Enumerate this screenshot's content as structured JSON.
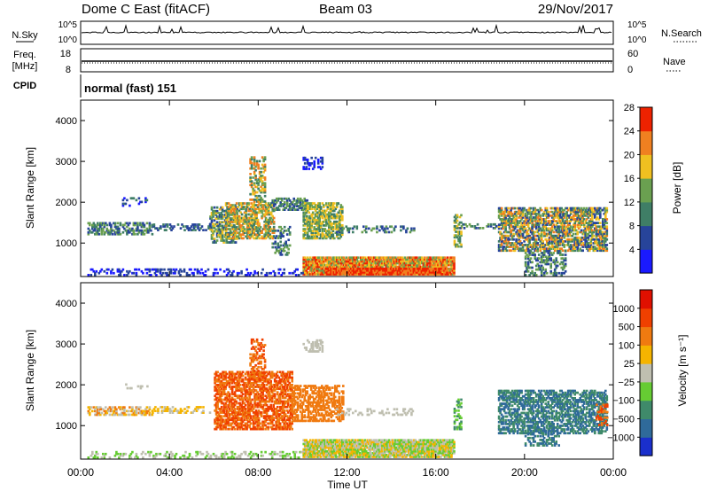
{
  "header": {
    "station": "Dome C East (fitACF)",
    "beam": "Beam 03",
    "date": "29/Nov/2017"
  },
  "noise_panel": {
    "left_label": "N.Sky",
    "right_label": "N.Search",
    "tick_top": "10^5",
    "tick_bottom": "10^0"
  },
  "freq_panel": {
    "left_label_1": "Freq.",
    "left_label_2": "[MHz]",
    "left_ticks": [
      "18",
      "8"
    ],
    "right_ticks": [
      "60",
      "0"
    ],
    "right_label": "Nave"
  },
  "cpid_panel": {
    "label": "CPID",
    "program": "normal (fast) 151"
  },
  "chart_data": [
    {
      "type": "heatmap",
      "name_panel": "power",
      "ylabel": "Slant Range [km]",
      "yticks": [
        "1000",
        "2000",
        "3000",
        "4000"
      ],
      "ylim": [
        180,
        4500
      ],
      "colorbar_label": "Power [dB]",
      "colorbar_ticks": [
        "4",
        "8",
        "12",
        "16",
        "20",
        "24",
        "28"
      ],
      "colors": [
        "#1a1aff",
        "#27449a",
        "#3f7e66",
        "#6aa050",
        "#f0c020",
        "#f08020",
        "#ee2200"
      ],
      "regions": [
        {
          "t0": 0.3,
          "t1": 3.2,
          "r0": 1200,
          "r1": 1500,
          "dens": 0.55,
          "lv": [
            1,
            3
          ]
        },
        {
          "t0": 1.8,
          "t1": 3.0,
          "r0": 1900,
          "r1": 2100,
          "dens": 0.2,
          "lv": [
            0,
            2
          ]
        },
        {
          "t0": 3.2,
          "t1": 5.8,
          "r0": 1300,
          "r1": 1450,
          "dens": 0.35,
          "lv": [
            1,
            2
          ]
        },
        {
          "t0": 5.8,
          "t1": 7.0,
          "r0": 1000,
          "r1": 1900,
          "dens": 0.55,
          "lv": [
            1,
            4
          ]
        },
        {
          "t0": 6.5,
          "t1": 8.7,
          "r0": 1100,
          "r1": 2000,
          "dens": 0.6,
          "lv": [
            2,
            5
          ]
        },
        {
          "t0": 7.6,
          "t1": 8.3,
          "r0": 2000,
          "r1": 3100,
          "dens": 0.4,
          "lv": [
            2,
            5
          ]
        },
        {
          "t0": 8.6,
          "t1": 9.4,
          "r0": 700,
          "r1": 1400,
          "dens": 0.35,
          "lv": [
            1,
            3
          ]
        },
        {
          "t0": 8.6,
          "t1": 10.2,
          "r0": 1800,
          "r1": 2100,
          "dens": 0.55,
          "lv": [
            1,
            3
          ]
        },
        {
          "t0": 10.0,
          "t1": 11.8,
          "r0": 1100,
          "r1": 2000,
          "dens": 0.6,
          "lv": [
            2,
            4
          ]
        },
        {
          "t0": 10.0,
          "t1": 10.9,
          "r0": 2800,
          "r1": 3100,
          "dens": 0.4,
          "lv": [
            0,
            1
          ]
        },
        {
          "t0": 11.5,
          "t1": 15.0,
          "r0": 1250,
          "r1": 1400,
          "dens": 0.3,
          "lv": [
            1,
            3
          ]
        },
        {
          "t0": 10.0,
          "t1": 16.8,
          "r0": 220,
          "r1": 650,
          "dens": 0.9,
          "lv": [
            3,
            6
          ]
        },
        {
          "t0": 11.0,
          "t1": 16.5,
          "r0": 220,
          "r1": 380,
          "dens": 0.95,
          "lv": [
            5,
            6
          ]
        },
        {
          "t0": 16.8,
          "t1": 17.1,
          "r0": 900,
          "r1": 1700,
          "dens": 0.5,
          "lv": [
            2,
            4
          ]
        },
        {
          "t0": 17.0,
          "t1": 18.8,
          "r0": 1350,
          "r1": 1450,
          "dens": 0.3,
          "lv": [
            1,
            3
          ]
        },
        {
          "t0": 18.8,
          "t1": 23.7,
          "r0": 800,
          "r1": 1850,
          "dens": 0.6,
          "lv": [
            1,
            5
          ]
        },
        {
          "t0": 20.0,
          "t1": 21.8,
          "r0": 200,
          "r1": 800,
          "dens": 0.4,
          "lv": [
            1,
            3
          ]
        },
        {
          "t0": 0.3,
          "t1": 10.0,
          "r0": 200,
          "r1": 350,
          "dens": 0.25,
          "lv": [
            0,
            1
          ]
        }
      ]
    },
    {
      "type": "heatmap",
      "name_panel": "velocity",
      "ylabel": "Slant Range [km]",
      "yticks": [
        "1000",
        "2000",
        "3000",
        "4000"
      ],
      "ylim": [
        180,
        4500
      ],
      "colorbar_label": "Velocity [m s⁻¹]",
      "colorbar_ticks": [
        "1000",
        "500",
        "100",
        "25",
        "−25",
        "−100",
        "−500",
        "−1000"
      ],
      "colors": [
        "#1a2fcc",
        "#2f6a9a",
        "#3f8a6a",
        "#66cc33",
        "#bfbfb0",
        "#f5b400",
        "#f07a10",
        "#f04000",
        "#e01000"
      ],
      "regions": [
        {
          "t0": 0.3,
          "t1": 3.2,
          "r0": 1250,
          "r1": 1450,
          "dens": 0.5,
          "lv": [
            4,
            6
          ]
        },
        {
          "t0": 2.0,
          "t1": 3.0,
          "r0": 1900,
          "r1": 2000,
          "dens": 0.2,
          "lv": [
            4,
            4
          ]
        },
        {
          "t0": 3.2,
          "t1": 5.8,
          "r0": 1300,
          "r1": 1450,
          "dens": 0.3,
          "lv": [
            4,
            5
          ]
        },
        {
          "t0": 6.0,
          "t1": 9.5,
          "r0": 900,
          "r1": 2300,
          "dens": 0.6,
          "lv": [
            6,
            7
          ]
        },
        {
          "t0": 7.6,
          "t1": 8.3,
          "r0": 2100,
          "r1": 3100,
          "dens": 0.35,
          "lv": [
            6,
            7
          ]
        },
        {
          "t0": 9.5,
          "t1": 11.8,
          "r0": 1100,
          "r1": 2000,
          "dens": 0.5,
          "lv": [
            6,
            6
          ]
        },
        {
          "t0": 10.0,
          "t1": 10.9,
          "r0": 2800,
          "r1": 3100,
          "dens": 0.4,
          "lv": [
            4,
            4
          ]
        },
        {
          "t0": 11.5,
          "t1": 15.0,
          "r0": 1250,
          "r1": 1400,
          "dens": 0.25,
          "lv": [
            4,
            4
          ]
        },
        {
          "t0": 10.0,
          "t1": 16.8,
          "r0": 220,
          "r1": 650,
          "dens": 0.85,
          "lv": [
            3,
            5
          ]
        },
        {
          "t0": 16.8,
          "t1": 17.1,
          "r0": 900,
          "r1": 1700,
          "dens": 0.4,
          "lv": [
            2,
            3
          ]
        },
        {
          "t0": 18.8,
          "t1": 23.7,
          "r0": 800,
          "r1": 1850,
          "dens": 0.55,
          "lv": [
            1,
            2
          ]
        },
        {
          "t0": 20.0,
          "t1": 21.5,
          "r0": 500,
          "r1": 900,
          "dens": 0.35,
          "lv": [
            1,
            2
          ]
        },
        {
          "t0": 23.2,
          "t1": 23.7,
          "r0": 1000,
          "r1": 1500,
          "dens": 0.3,
          "lv": [
            6,
            7
          ]
        },
        {
          "t0": 0.3,
          "t1": 10.0,
          "r0": 200,
          "r1": 350,
          "dens": 0.25,
          "lv": [
            3,
            4
          ]
        }
      ]
    }
  ],
  "x_axis": {
    "label": "Time UT",
    "ticks": [
      "00:00",
      "04:00",
      "08:00",
      "12:00",
      "16:00",
      "20:00",
      "00:00"
    ]
  }
}
